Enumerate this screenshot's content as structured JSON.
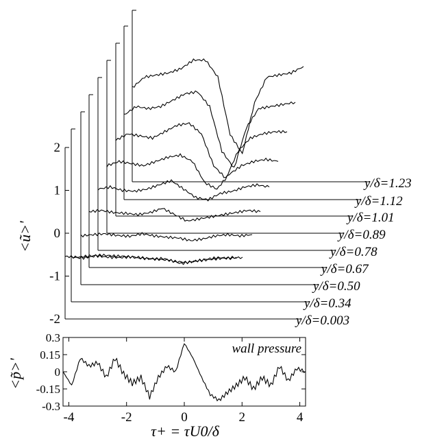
{
  "chart_data": [
    {
      "type": "line",
      "layout_style": "waterfall (stacked offset axes)",
      "ylabel": "<ũ>'",
      "y_ticks": [
        "2",
        "1",
        "0",
        "-1",
        "-2"
      ],
      "ylim": [
        -2,
        2
      ],
      "series": [
        {
          "name": "y/δ=0.003",
          "baseline": 0.0,
          "x": [
            -4.2,
            -3.6,
            -3.0,
            -2.4,
            -1.8,
            -1.2,
            -0.6,
            0.0,
            0.6,
            1.2,
            1.8,
            2.4,
            3.0,
            3.6,
            4.2
          ],
          "values": [
            0.02,
            0.0,
            0.03,
            0.05,
            0.03,
            0.02,
            -0.02,
            -0.04,
            -0.03,
            -0.1,
            -0.12,
            -0.08,
            -0.05,
            -0.02,
            0.0
          ]
        },
        {
          "name": "y/δ=0.34",
          "baseline": 0.0,
          "x": [
            -4.2,
            -3.6,
            -3.0,
            -2.4,
            -1.8,
            -1.2,
            -0.6,
            0.0,
            0.6,
            1.2,
            1.8,
            2.4,
            3.0,
            3.6,
            4.2
          ],
          "values": [
            0.05,
            0.03,
            0.08,
            0.05,
            0.04,
            0.06,
            0.03,
            0.0,
            -0.02,
            -0.1,
            -0.05,
            0.0,
            0.04,
            0.02,
            0.05
          ]
        },
        {
          "name": "y/δ=0.50",
          "baseline": 0.0,
          "x": [
            -4.2,
            -3.6,
            -3.0,
            -2.4,
            -1.8,
            -1.2,
            -0.6,
            0.0,
            0.6,
            1.2,
            1.8,
            2.4,
            3.0,
            3.6,
            4.2
          ],
          "values": [
            0.05,
            0.08,
            0.1,
            0.06,
            0.04,
            0.1,
            0.05,
            0.02,
            0.0,
            -0.06,
            -0.02,
            0.05,
            0.08,
            0.05,
            0.08
          ]
        },
        {
          "name": "y/δ=0.67",
          "baseline": 0.0,
          "x": [
            -4.2,
            -3.6,
            -3.0,
            -2.4,
            -1.8,
            -1.2,
            -0.6,
            0.0,
            0.6,
            1.2,
            1.8,
            2.4,
            3.0,
            3.6,
            4.2
          ],
          "values": [
            0.12,
            0.15,
            0.1,
            0.08,
            0.05,
            0.1,
            0.2,
            0.05,
            -0.1,
            -0.05,
            0.0,
            0.05,
            0.1,
            0.15,
            0.12
          ]
        },
        {
          "name": "y/δ=0.78",
          "baseline": 0.0,
          "x": [
            -4.2,
            -3.6,
            -3.0,
            -2.4,
            -1.8,
            -1.2,
            -0.6,
            0.0,
            0.6,
            1.2,
            1.8,
            2.4,
            3.0,
            3.6,
            4.2
          ],
          "values": [
            0.15,
            0.2,
            0.12,
            0.1,
            0.15,
            0.25,
            0.35,
            0.15,
            -0.05,
            -0.1,
            0.05,
            0.1,
            0.2,
            0.25,
            0.2
          ]
        },
        {
          "name": "y/δ=0.89",
          "baseline": 0.0,
          "x": [
            -4.2,
            -3.6,
            -3.0,
            -2.4,
            -1.8,
            -1.2,
            -0.6,
            0.0,
            0.6,
            1.2,
            1.8,
            2.4,
            3.0,
            3.6,
            4.2
          ],
          "values": [
            0.2,
            0.3,
            0.25,
            0.2,
            0.3,
            0.4,
            0.45,
            0.3,
            -0.2,
            -0.35,
            0.0,
            0.2,
            0.3,
            0.35,
            0.3
          ]
        },
        {
          "name": "y/δ=1.01",
          "baseline": 0.0,
          "x": [
            -4.2,
            -3.6,
            -3.0,
            -2.4,
            -1.8,
            -1.2,
            -0.6,
            0.0,
            0.6,
            1.2,
            1.8,
            2.4,
            3.0,
            3.6,
            4.2
          ],
          "values": [
            0.3,
            0.45,
            0.4,
            0.35,
            0.5,
            0.65,
            0.7,
            0.45,
            -0.3,
            -0.6,
            0.05,
            0.35,
            0.45,
            0.5,
            0.5
          ]
        },
        {
          "name": "y/δ=1.12",
          "baseline": 0.0,
          "x": [
            -4.2,
            -3.6,
            -3.0,
            -2.4,
            -1.8,
            -1.2,
            -0.6,
            0.0,
            0.6,
            1.2,
            1.8,
            2.4,
            3.0,
            3.6,
            4.2
          ],
          "values": [
            0.4,
            0.6,
            0.55,
            0.6,
            0.75,
            0.9,
            0.95,
            0.6,
            -0.45,
            -0.85,
            0.1,
            0.55,
            0.6,
            0.65,
            0.7
          ]
        },
        {
          "name": "y/δ=1.23",
          "baseline": 0.0,
          "x": [
            -4.2,
            -3.6,
            -3.0,
            -2.4,
            -1.8,
            -1.2,
            -0.6,
            0.0,
            0.6,
            1.2,
            1.8,
            2.4,
            3.0,
            3.6,
            4.2
          ],
          "values": [
            0.55,
            0.8,
            0.85,
            0.9,
            1.0,
            1.2,
            1.2,
            0.8,
            -0.55,
            -1.0,
            0.2,
            0.8,
            0.85,
            0.9,
            1.05
          ]
        }
      ]
    },
    {
      "type": "line",
      "ylabel": "<p̃>'",
      "xlabel": "τ+ = τU0/δ",
      "annotation": "wall pressure",
      "xlim": [
        -4.2,
        4.2
      ],
      "ylim": [
        -0.3,
        0.3
      ],
      "x_ticks": [
        -4,
        -2,
        0,
        2,
        4
      ],
      "y_ticks": [
        0.3,
        0.15,
        0,
        -0.15,
        -0.3
      ],
      "y_tick_labels": [
        "0.3",
        "0.15",
        "0",
        "-0.15",
        "-0.3"
      ],
      "series": [
        {
          "name": "wall pressure",
          "x": [
            -4.2,
            -3.9,
            -3.6,
            -3.3,
            -3.0,
            -2.7,
            -2.4,
            -2.1,
            -1.8,
            -1.5,
            -1.2,
            -0.9,
            -0.6,
            -0.3,
            0.0,
            0.3,
            0.6,
            0.9,
            1.2,
            1.5,
            1.8,
            2.1,
            2.4,
            2.7,
            3.0,
            3.3,
            3.6,
            3.9,
            4.2
          ],
          "values": [
            0.0,
            -0.12,
            0.12,
            0.05,
            0.08,
            -0.05,
            0.12,
            -0.02,
            -0.1,
            -0.05,
            -0.22,
            -0.05,
            0.05,
            0.0,
            0.25,
            0.12,
            -0.05,
            -0.2,
            -0.25,
            -0.18,
            -0.12,
            -0.05,
            -0.15,
            -0.05,
            -0.12,
            0.05,
            -0.08,
            0.03,
            0.0
          ]
        }
      ]
    }
  ],
  "labels": {
    "upper_ylabel": "<ũ>'",
    "lower_ylabel": "<p̃>'",
    "xlabel": "τ+ = τU0/δ",
    "annotation": "wall pressure"
  }
}
